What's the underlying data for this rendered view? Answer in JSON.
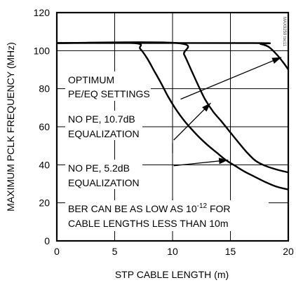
{
  "chart_data": {
    "type": "line",
    "xlabel": "STP CABLE LENGTH (m)",
    "ylabel": "MAXIMUM PCLK FREQUENCY (MHz)",
    "xlim": [
      0,
      20
    ],
    "ylim": [
      0,
      120
    ],
    "x_ticks": [
      "0",
      "5",
      "10",
      "15",
      "20"
    ],
    "y_ticks": [
      "0",
      "20",
      "40",
      "60",
      "80",
      "100",
      "120"
    ],
    "grid": true,
    "series": [
      {
        "name": "OPTIMUM PE/EQ SETTINGS",
        "points": [
          [
            0,
            104
          ],
          [
            17,
            104
          ],
          [
            17.6,
            103.5
          ],
          [
            18.3,
            102
          ],
          [
            19,
            98
          ],
          [
            19.6,
            93.5
          ],
          [
            20,
            90
          ]
        ]
      },
      {
        "name": "NO PE, 10.7dB EQUALIZATION",
        "points": [
          [
            0,
            104
          ],
          [
            10.4,
            104
          ],
          [
            11,
            98
          ],
          [
            11.6,
            90
          ],
          [
            12.2,
            82
          ],
          [
            12.8,
            74.5
          ],
          [
            13.5,
            68
          ],
          [
            14.2,
            63
          ],
          [
            15,
            57
          ],
          [
            15.8,
            51
          ],
          [
            16.5,
            46
          ],
          [
            17.2,
            42
          ],
          [
            18,
            39.5
          ],
          [
            19,
            37.5
          ],
          [
            20,
            36
          ]
        ]
      },
      {
        "name": "NO PE, 5.2dB EQUALIZATION",
        "points": [
          [
            0,
            104
          ],
          [
            6.6,
            104
          ],
          [
            7.2,
            101
          ],
          [
            7.8,
            96
          ],
          [
            8.4,
            89.5
          ],
          [
            9,
            83
          ],
          [
            9.6,
            76
          ],
          [
            10.2,
            70
          ],
          [
            10.9,
            64
          ],
          [
            11.6,
            59
          ],
          [
            12.3,
            54.5
          ],
          [
            13,
            50.5
          ],
          [
            13.8,
            46.5
          ],
          [
            14.6,
            42.5
          ],
          [
            15.4,
            39.5
          ],
          [
            16.2,
            36.5
          ],
          [
            17,
            34
          ],
          [
            18,
            31
          ],
          [
            19,
            28.5
          ],
          [
            20,
            27
          ]
        ]
      }
    ],
    "annotations": {
      "optimum_line1": "OPTIMUM",
      "optimum_line2": "PE/EQ SETTINGS",
      "eq107_line1": "NO PE, 10.7dB",
      "eq107_line2": "EQUALIZATION",
      "eq52_line1": "NO PE, 5.2dB",
      "eq52_line2": "EQUALIZATION",
      "ber_line1_pre": "BER CAN BE AS LOW AS 10",
      "ber_line1_exp": "-12",
      "ber_line1_post": " FOR",
      "ber_line2": "CABLE LENGTHS LESS THAN 10m",
      "watermark": "MAX9259 toc11"
    }
  }
}
